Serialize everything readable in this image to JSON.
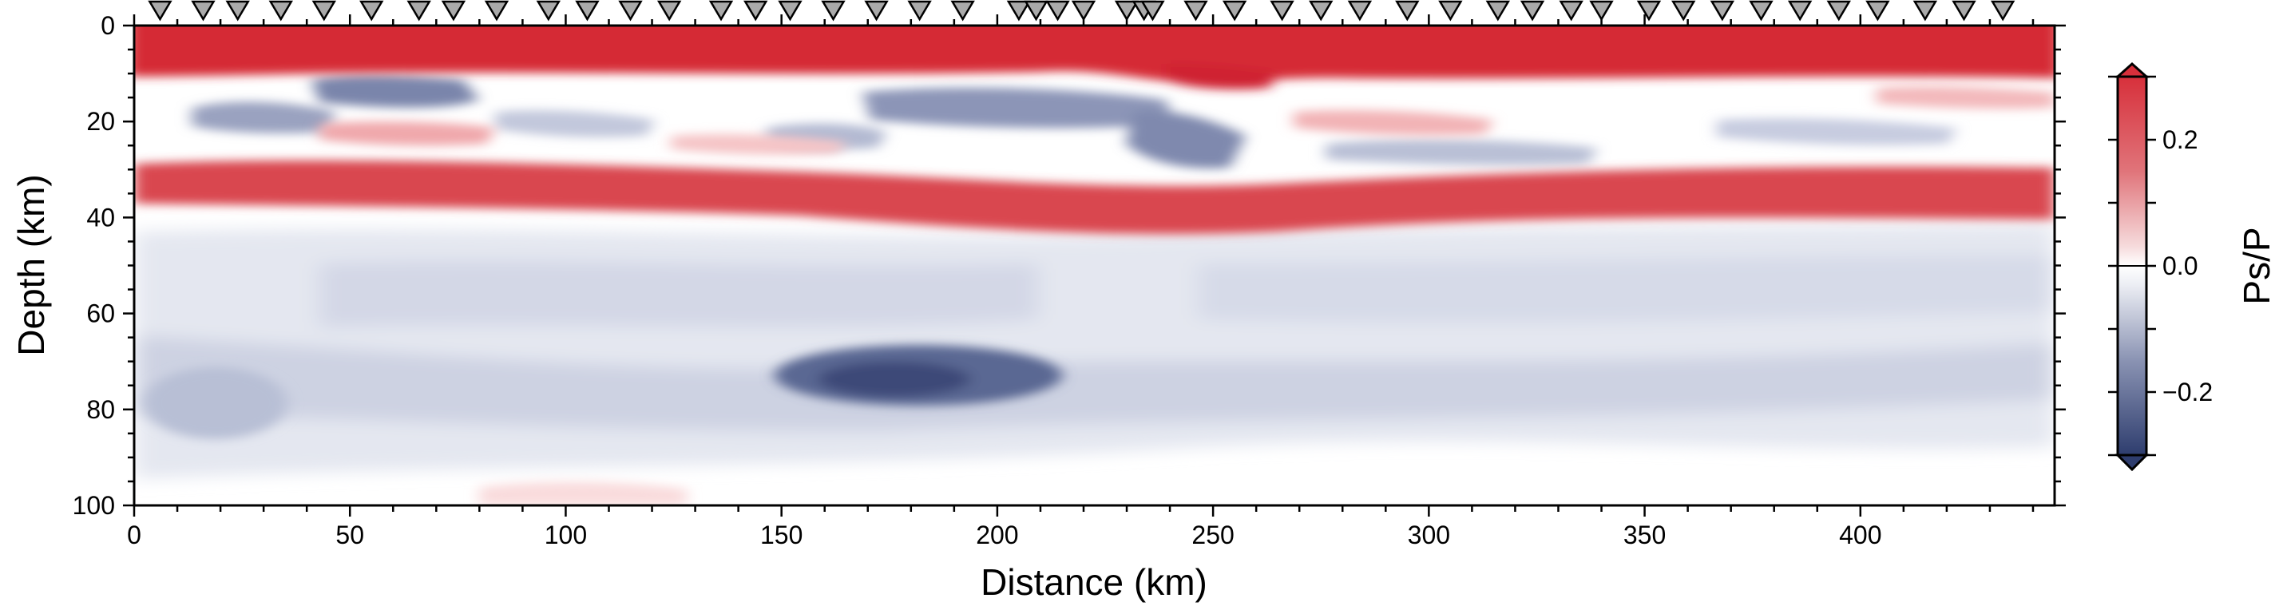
{
  "chart_data": {
    "type": "heatmap",
    "title": "",
    "xlabel": "Distance (km)",
    "ylabel": "Depth (km)",
    "xlim": [
      0,
      445
    ],
    "ylim": [
      100,
      0
    ],
    "x_ticks": [
      "0",
      "50",
      "100",
      "150",
      "200",
      "250",
      "300",
      "350",
      "400"
    ],
    "y_ticks": [
      "0",
      "20",
      "40",
      "60",
      "80",
      "100"
    ],
    "colorbar": {
      "label": "Ps/P",
      "range": [
        -0.3,
        0.3
      ],
      "ticks": [
        "0.2",
        "0.0",
        "−0.2"
      ],
      "colors": {
        "negative": "#2e3d6e",
        "zero": "#ffffff",
        "positive": "#d7303b"
      }
    },
    "stations_km": [
      6,
      16,
      24,
      34,
      44,
      55,
      66,
      74,
      84,
      96,
      105,
      115,
      124,
      136,
      144,
      152,
      162,
      172,
      182,
      192,
      205,
      209,
      214,
      220,
      230,
      234,
      236,
      246,
      255,
      266,
      275,
      284,
      295,
      305,
      316,
      324,
      333,
      340,
      351,
      359,
      368,
      377,
      386,
      395,
      404,
      415,
      424,
      433
    ],
    "features": [
      {
        "name": "surface layer",
        "polarity": "positive",
        "depth_km": [
          0,
          8
        ],
        "amplitude": 0.3
      },
      {
        "name": "upper crustal negative",
        "polarity": "negative",
        "depth_km": [
          10,
          28
        ],
        "amplitude": -0.15
      },
      {
        "name": "Moho",
        "polarity": "positive",
        "depth_km": [
          28,
          43
        ],
        "amplitude": 0.25
      },
      {
        "name": "mantle negative",
        "polarity": "negative",
        "depth_km": [
          45,
          95
        ],
        "amplitude": -0.12
      },
      {
        "name": "deep negative anomaly",
        "polarity": "negative",
        "distance_km": [
          160,
          230
        ],
        "depth_km": [
          68,
          82
        ],
        "amplitude": -0.22
      }
    ]
  }
}
